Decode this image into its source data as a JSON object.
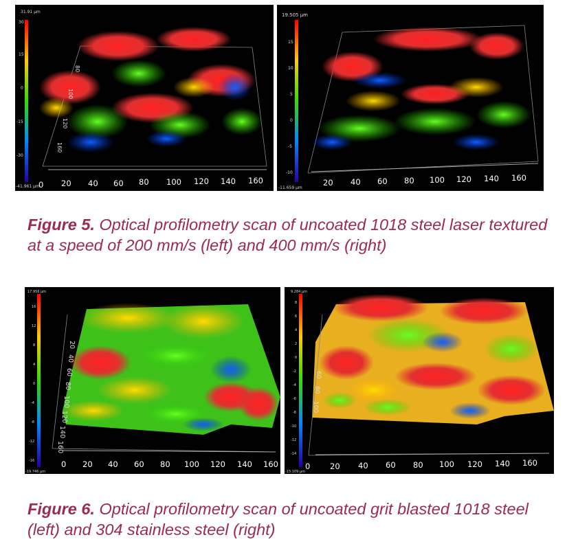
{
  "figure5": {
    "label": "Figure 5.",
    "caption": "Optical profilometry scan of uncoated 1018 steel laser textured at a speed of 200 mm/s (left) and 400 mm/s (right)",
    "left": {
      "scale_max": "31.91 μm",
      "scale_min": "-41.961 μm",
      "scale_ticks": [
        "30",
        "15",
        "0",
        "-15",
        "-30"
      ],
      "y_ticks": [
        "80",
        "100",
        "120",
        "160"
      ],
      "x_ticks": [
        "0",
        "20",
        "40",
        "60",
        "80",
        "100",
        "120",
        "140",
        "160"
      ]
    },
    "right": {
      "scale_max": "19.505 μm",
      "scale_min": "-11.659 μm",
      "scale_ticks": [
        "15",
        "10",
        "5",
        "0",
        "-5",
        "-10"
      ],
      "x_ticks": [
        "20",
        "40",
        "60",
        "80",
        "100",
        "120",
        "140",
        "160"
      ]
    }
  },
  "figure6": {
    "label": "Figure 6.",
    "caption": "Optical profilometry scan of uncoated grit blasted 1018 steel (left) and 304 stainless steel (right)",
    "left": {
      "scale_max": "17.956 μm",
      "scale_min": "-19.746 μm",
      "scale_ticks": [
        "16",
        "12",
        "8",
        "4",
        "0",
        "-4",
        "-8",
        "-12",
        "-16"
      ],
      "y_ticks": [
        "20",
        "40",
        "60",
        "80",
        "100",
        "120",
        "140",
        "160"
      ],
      "x_ticks": [
        "0",
        "20",
        "40",
        "60",
        "80",
        "100",
        "120",
        "140",
        "160"
      ]
    },
    "right": {
      "scale_max": "9.284 μm",
      "scale_min": "-15.109 μm",
      "scale_ticks": [
        "8",
        "6",
        "4",
        "2",
        "0",
        "-2",
        "-4",
        "-6",
        "-8",
        "-10",
        "-12",
        "-14"
      ],
      "y_ticks": [
        "60",
        "80",
        "100"
      ],
      "x_ticks": [
        "0",
        "20",
        "40",
        "60",
        "80",
        "100",
        "120",
        "140",
        "160"
      ]
    }
  },
  "colors": {
    "caption": "#9b2a52",
    "panel_bg": "#000000"
  }
}
